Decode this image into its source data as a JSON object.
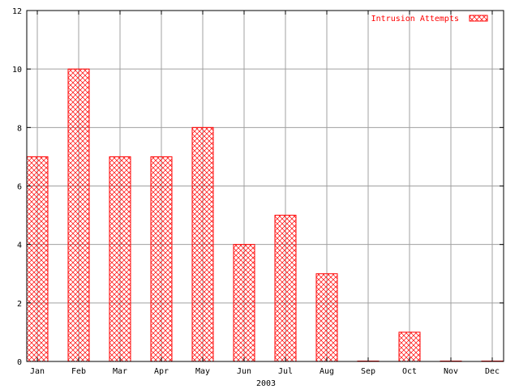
{
  "chart_data": {
    "type": "bar",
    "title": "",
    "xlabel": "2003",
    "ylabel": "",
    "categories": [
      "Jan",
      "Feb",
      "Mar",
      "Apr",
      "May",
      "Jun",
      "Jul",
      "Aug",
      "Sep",
      "Oct",
      "Nov",
      "Dec"
    ],
    "series": [
      {
        "name": "Intrusion Attempts",
        "values": [
          7,
          10,
          7,
          7,
          8,
          4,
          5,
          3,
          0,
          1,
          0,
          0
        ]
      }
    ],
    "ylim": [
      0,
      12
    ],
    "yticks": [
      "0",
      "2",
      "4",
      "6",
      "8",
      "10",
      "12"
    ],
    "grid": true,
    "legend_position": "top-right",
    "bar_color": "#ff0000",
    "axis_color": "#000000",
    "grid_color": "#a0a0a0"
  }
}
